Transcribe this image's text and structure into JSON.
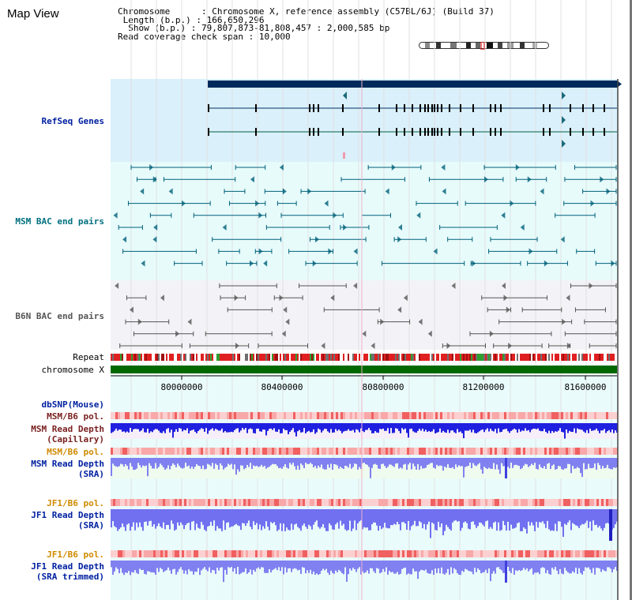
{
  "view": {
    "title": "Map View"
  },
  "info": {
    "chrom_label": "Chromosome",
    "chrom_value": "Chromosome X, reference assembly (C57BL/6J) (Build 37)",
    "length_label": "Length (b.p.)",
    "length_value": "166,650,296",
    "show_label": "Show (b.p.)",
    "show_value": "79,807,873-81,808,457 : 2,000,585 bp",
    "span_label": "Read coverage check span",
    "span_value": "10,000"
  },
  "tracks": {
    "refseq": "RefSeq Genes",
    "msm_bac": "MSM BAC end pairs",
    "b6n_bac": "B6N BAC end pairs",
    "repeat": "Repeat",
    "chromosome": "chromosome X",
    "dbsnp": "dbSNP(Mouse)",
    "msm_b6_pol_1": "MSM/B6 pol.",
    "msm_depth_cap_1": "MSM Read Depth",
    "msm_depth_cap_2": "(Capillary)",
    "msm_b6_pol_2": "MSM/B6 pol.",
    "msm_depth_sra_1": "MSM Read Depth",
    "msm_depth_sra_2": "(SRA)",
    "jf1_b6_pol_1": "JF1/B6 pol.",
    "jf1_depth_sra_1": "JF1 Read Depth",
    "jf1_depth_sra_2": "(SRA)",
    "jf1_b6_pol_2": "JF1/B6 pol.",
    "jf1_depth_trim_1": "JF1 Read Depth",
    "jf1_depth_trim_2": "(SRA trimmed)"
  },
  "ruler": {
    "ticks": [
      "80000000",
      "80400000",
      "80800000",
      "81200000",
      "81600000"
    ]
  },
  "colors": {
    "refseq_bg": "#daf0fb",
    "msm_bg": "#e7fbfb",
    "b6n_bg": "#f3f3f7",
    "lower_bg": "#eafbfb",
    "chromosome": "#006800",
    "gene": "#003060",
    "bac": "#00607a",
    "depth": "#1a1ae0",
    "depth_sra": "#7070f0"
  }
}
